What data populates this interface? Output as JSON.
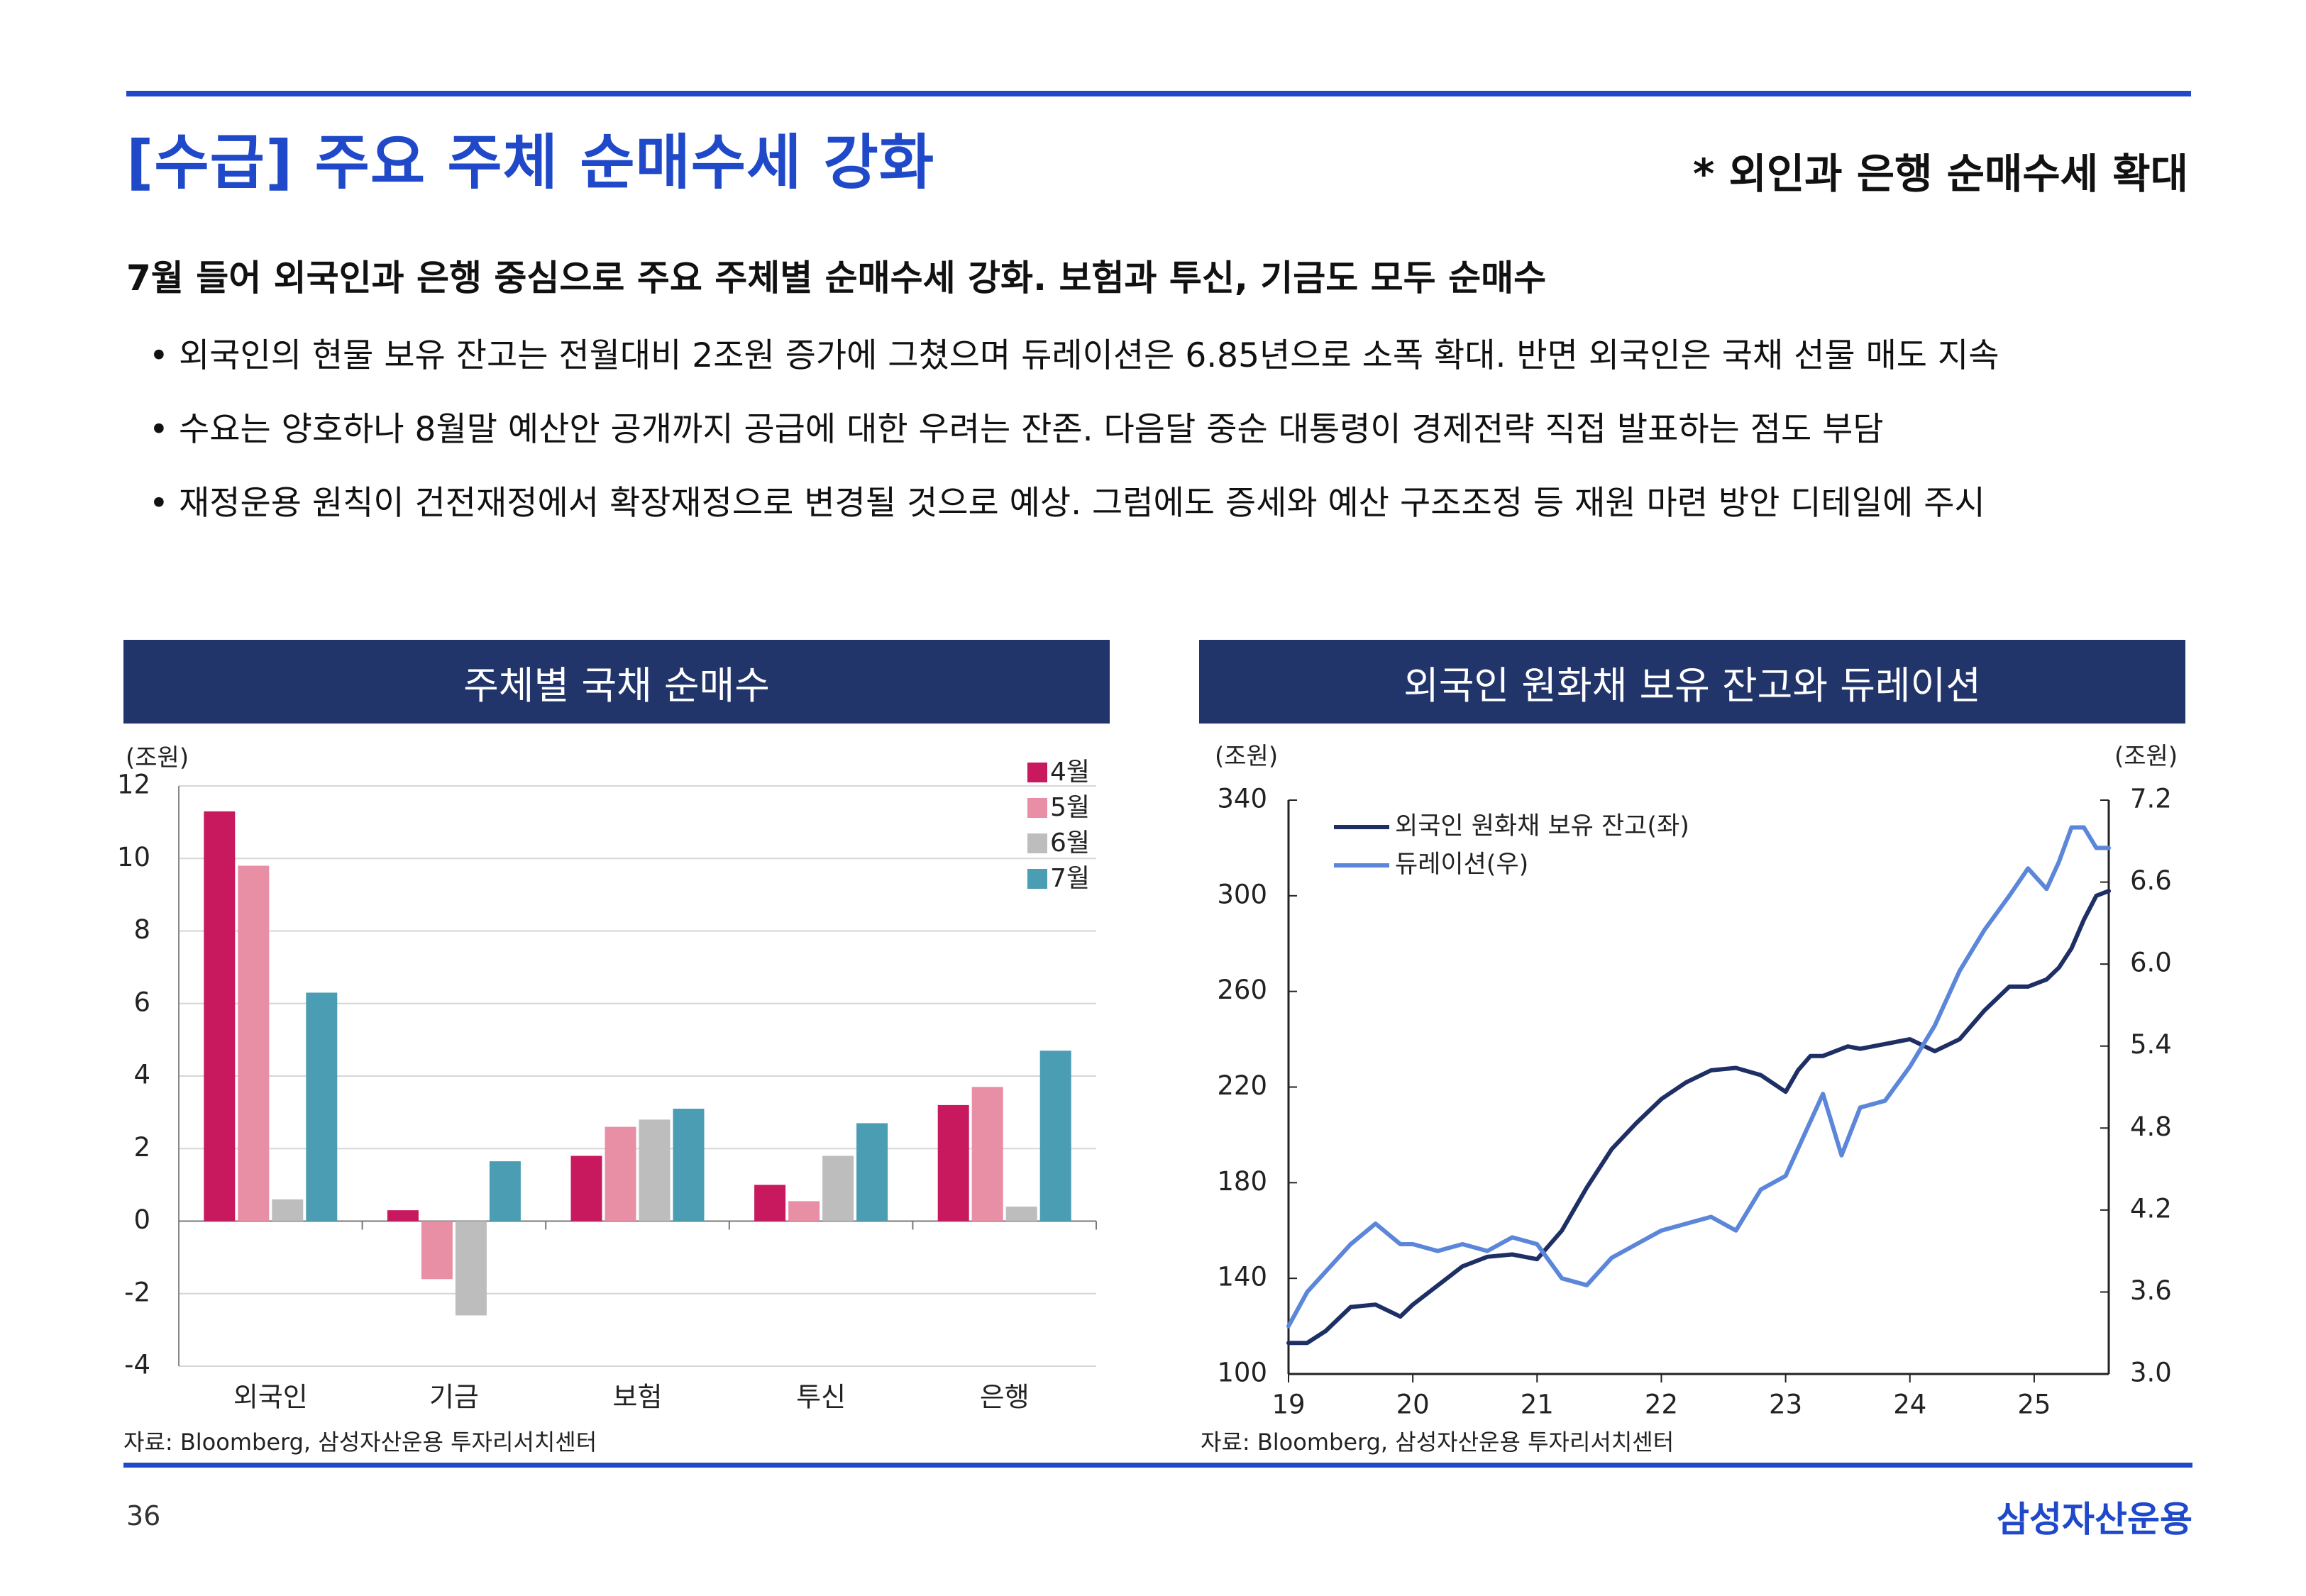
{
  "page": {
    "title": "[수급] 주요 주체 순매수세 강화",
    "subnote": "* 외인과 은행 순매수세 확대",
    "lead": "7월 들어 외국인과 은행 중심으로 주요 주체별 순매수세 강화. 보험과 투신, 기금도 모두 순매수",
    "bullets": [
      "외국인의 현물 보유 잔고는 전월대비 2조원 증가에 그쳤으며 듀레이션은 6.85년으로 소폭 확대. 반면 외국인은 국채 선물 매도 지속",
      "수요는 양호하나 8월말 예산안 공개까지 공급에 대한 우려는 잔존. 다음달 중순 대통령이 경제전략 직접 발표하는 점도 부담",
      "재정운용 원칙이 건전재정에서 확장재정으로 변경될 것으로 예상. 그럼에도 증세와 예산 구조조정 등 재원 마련 방안 디테일에 주시"
    ],
    "page_number": "36",
    "brand": "삼성자산운용",
    "bullet_mark": "•"
  },
  "colors": {
    "accent": "#1f49c9",
    "panel_header": "#22356b",
    "april": "#c8195e",
    "may": "#e88fa5",
    "june": "#bdbdbd",
    "july": "#4b9db4",
    "holdings": "#1e2f66",
    "duration": "#5b86d9"
  },
  "chart_data": [
    {
      "type": "bar",
      "title": "주체별 국채 순매수",
      "unit_label": "(조원)",
      "categories": [
        "외국인",
        "기금",
        "보험",
        "투신",
        "은행"
      ],
      "series": [
        {
          "name": "4월",
          "values": [
            11.3,
            0.3,
            1.8,
            1.0,
            3.2
          ]
        },
        {
          "name": "5월",
          "values": [
            9.8,
            -1.6,
            2.6,
            0.55,
            3.7
          ]
        },
        {
          "name": "6월",
          "values": [
            0.6,
            -2.6,
            2.8,
            1.8,
            0.4
          ]
        },
        {
          "name": "7월",
          "values": [
            6.3,
            1.65,
            3.1,
            2.7,
            4.7
          ]
        }
      ],
      "ylim": [
        -4,
        12
      ],
      "yticks": [
        "12",
        "10",
        "8",
        "6",
        "4",
        "2",
        "0",
        "-2",
        "-4"
      ],
      "grid": true,
      "legend_position": "top-right",
      "source": "자료: Bloomberg, 삼성자산운용 투자리서치센터"
    },
    {
      "type": "line",
      "title": "외국인 원화채 보유 잔고와 듀레이션",
      "left_unit_label": "(조원)",
      "right_unit_label": "(조원)",
      "x_range": [
        2019,
        2025.6
      ],
      "xticks": [
        "19",
        "20",
        "21",
        "22",
        "23",
        "24",
        "25"
      ],
      "left_ylim": [
        100,
        340
      ],
      "left_yticks": [
        "340",
        "300",
        "260",
        "220",
        "180",
        "140",
        "100"
      ],
      "right_ylim": [
        3.0,
        7.2
      ],
      "right_yticks": [
        "7.2",
        "6.6",
        "6.0",
        "5.4",
        "4.8",
        "4.2",
        "3.6",
        "3.0"
      ],
      "series": [
        {
          "name": "외국인 원화채 보유 잔고(좌)",
          "axis": "left",
          "x": [
            2019.0,
            2019.15,
            2019.3,
            2019.5,
            2019.7,
            2019.9,
            2020.0,
            2020.2,
            2020.4,
            2020.6,
            2020.8,
            2021.0,
            2021.2,
            2021.4,
            2021.6,
            2021.8,
            2022.0,
            2022.2,
            2022.4,
            2022.6,
            2022.8,
            2023.0,
            2023.1,
            2023.2,
            2023.3,
            2023.4,
            2023.5,
            2023.6,
            2023.8,
            2024.0,
            2024.2,
            2024.4,
            2024.6,
            2024.8,
            2024.95,
            2025.1,
            2025.2,
            2025.3,
            2025.4,
            2025.5,
            2025.6
          ],
          "y": [
            113,
            113,
            118,
            128,
            129,
            124,
            129,
            137,
            145,
            149,
            150,
            148,
            160,
            178,
            194,
            205,
            215,
            222,
            227,
            228,
            225,
            218,
            227,
            233,
            233,
            235,
            237,
            236,
            238,
            240,
            235,
            240,
            252,
            262,
            262,
            265,
            270,
            278,
            290,
            300,
            302
          ]
        },
        {
          "name": "듀레이션(우)",
          "axis": "right",
          "x": [
            2019.0,
            2019.15,
            2019.3,
            2019.5,
            2019.7,
            2019.9,
            2020.0,
            2020.2,
            2020.4,
            2020.6,
            2020.8,
            2021.0,
            2021.2,
            2021.4,
            2021.6,
            2021.8,
            2022.0,
            2022.2,
            2022.4,
            2022.6,
            2022.8,
            2023.0,
            2023.15,
            2023.3,
            2023.45,
            2023.6,
            2023.8,
            2024.0,
            2024.2,
            2024.4,
            2024.6,
            2024.8,
            2024.95,
            2025.1,
            2025.2,
            2025.3,
            2025.4,
            2025.5,
            2025.6
          ],
          "y": [
            3.35,
            3.6,
            3.75,
            3.95,
            4.1,
            3.95,
            3.95,
            3.9,
            3.95,
            3.9,
            4.0,
            3.95,
            3.7,
            3.65,
            3.85,
            3.95,
            4.05,
            4.1,
            4.15,
            4.05,
            4.35,
            4.45,
            4.75,
            5.05,
            4.6,
            4.95,
            5.0,
            5.25,
            5.55,
            5.95,
            6.25,
            6.5,
            6.7,
            6.55,
            6.75,
            7.0,
            7.0,
            6.85,
            6.85
          ]
        }
      ],
      "legend_position": "top-left",
      "source": "자료: Bloomberg, 삼성자산운용 투자리서치센터"
    }
  ]
}
